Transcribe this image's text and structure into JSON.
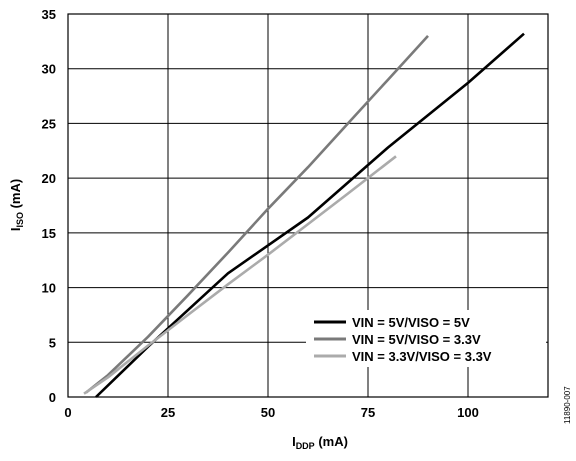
{
  "chart_data": {
    "type": "line",
    "xlabel": {
      "main": "I",
      "sub": "DDP",
      "unit": " (mA)"
    },
    "ylabel": {
      "main": "I",
      "sub": "ISO",
      "unit": " (mA)"
    },
    "xlim": [
      0,
      120
    ],
    "ylim": [
      0,
      35
    ],
    "xticks": [
      0,
      25,
      50,
      75,
      100
    ],
    "yticks": [
      0,
      5,
      10,
      15,
      20,
      25,
      30,
      35
    ],
    "grid": true,
    "legend_position": "lower-right",
    "side_note": "11890-007",
    "series": [
      {
        "name": "VIN = 5V/VISO = 5V",
        "color": "#000000",
        "x": [
          7,
          20,
          40,
          60,
          80,
          100,
          114
        ],
        "y": [
          0,
          4.6,
          11.3,
          16.4,
          22.8,
          28.7,
          33.2
        ]
      },
      {
        "name": "VIN = 5V/VISO = 3.3V",
        "color": "#7a7a7a",
        "x": [
          4.5,
          10,
          20,
          30,
          40,
          50,
          60,
          70,
          80,
          90
        ],
        "y": [
          0.4,
          2,
          5.5,
          9.3,
          13.2,
          17.2,
          21,
          25,
          29,
          33
        ]
      },
      {
        "name": "VIN = 3.3V/VISO = 3.3V",
        "color": "#ababab",
        "x": [
          4,
          10,
          20,
          30,
          40,
          50,
          60,
          70,
          82
        ],
        "y": [
          0.3,
          1.8,
          4.7,
          7.5,
          10.3,
          13,
          15.8,
          18.6,
          22
        ]
      }
    ]
  }
}
